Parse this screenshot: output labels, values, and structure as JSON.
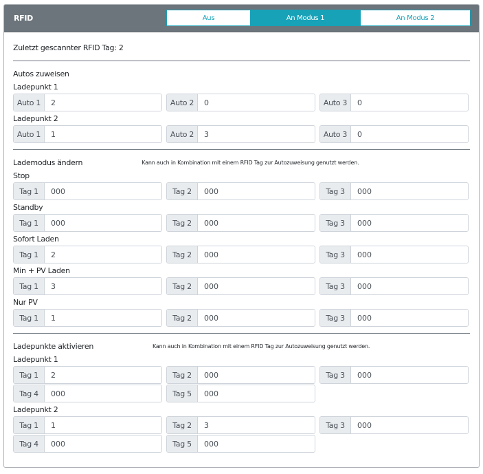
{
  "header": {
    "title": "RFID",
    "modes": [
      {
        "label": "Aus",
        "active": false
      },
      {
        "label": "An Modus 1",
        "active": true
      },
      {
        "label": "An Modus 2",
        "active": false
      }
    ]
  },
  "last_scanned": "Zuletzt gescannter RFID Tag: 2",
  "sections": [
    {
      "title": "Autos zuweisen",
      "note": "",
      "groups": [
        {
          "label": "Ladepunkt 1",
          "rows": [
            [
              {
                "prefix": "Auto 1",
                "value": "2"
              },
              {
                "prefix": "Auto 2",
                "value": "0"
              },
              {
                "prefix": "Auto 3",
                "value": "0"
              }
            ]
          ]
        },
        {
          "label": "Ladepunkt 2",
          "rows": [
            [
              {
                "prefix": "Auto 1",
                "value": "1"
              },
              {
                "prefix": "Auto 2",
                "value": "3"
              },
              {
                "prefix": "Auto 3",
                "value": "0"
              }
            ]
          ]
        }
      ]
    },
    {
      "title": "Lademodus ändern",
      "note": "Kann auch in Kombination mit einem RFID Tag zur Autozuweisung genutzt werden.",
      "groups": [
        {
          "label": "Stop",
          "rows": [
            [
              {
                "prefix": "Tag 1",
                "value": "000"
              },
              {
                "prefix": "Tag 2",
                "value": "000"
              },
              {
                "prefix": "Tag 3",
                "value": "000"
              }
            ]
          ]
        },
        {
          "label": "Standby",
          "rows": [
            [
              {
                "prefix": "Tag 1",
                "value": "000"
              },
              {
                "prefix": "Tag 2",
                "value": "000"
              },
              {
                "prefix": "Tag 3",
                "value": "000"
              }
            ]
          ]
        },
        {
          "label": "Sofort Laden",
          "rows": [
            [
              {
                "prefix": "Tag 1",
                "value": "2"
              },
              {
                "prefix": "Tag 2",
                "value": "000"
              },
              {
                "prefix": "Tag 3",
                "value": "000"
              }
            ]
          ]
        },
        {
          "label": "Min + PV Laden",
          "rows": [
            [
              {
                "prefix": "Tag 1",
                "value": "3"
              },
              {
                "prefix": "Tag 2",
                "value": "000"
              },
              {
                "prefix": "Tag 3",
                "value": "000"
              }
            ]
          ]
        },
        {
          "label": "Nur PV",
          "rows": [
            [
              {
                "prefix": "Tag 1",
                "value": "1"
              },
              {
                "prefix": "Tag 2",
                "value": "000"
              },
              {
                "prefix": "Tag 3",
                "value": "000"
              }
            ]
          ]
        }
      ]
    },
    {
      "title": "Ladepunkte aktivieren",
      "note": "Kann auch in Kombination mit einem RFID Tag zur Autozuweisung genutzt werden.",
      "groups": [
        {
          "label": "Ladepunkt 1",
          "rows": [
            [
              {
                "prefix": "Tag 1",
                "value": "2"
              },
              {
                "prefix": "Tag 2",
                "value": "000"
              },
              {
                "prefix": "Tag 3",
                "value": "000"
              }
            ],
            [
              {
                "prefix": "Tag 4",
                "value": "000"
              },
              {
                "prefix": "Tag 5",
                "value": "000"
              }
            ]
          ]
        },
        {
          "label": "Ladepunkt 2",
          "rows": [
            [
              {
                "prefix": "Tag 1",
                "value": "1"
              },
              {
                "prefix": "Tag 2",
                "value": "3"
              },
              {
                "prefix": "Tag 3",
                "value": "000"
              }
            ],
            [
              {
                "prefix": "Tag 4",
                "value": "000"
              },
              {
                "prefix": "Tag 5",
                "value": "000"
              }
            ]
          ]
        }
      ]
    }
  ]
}
